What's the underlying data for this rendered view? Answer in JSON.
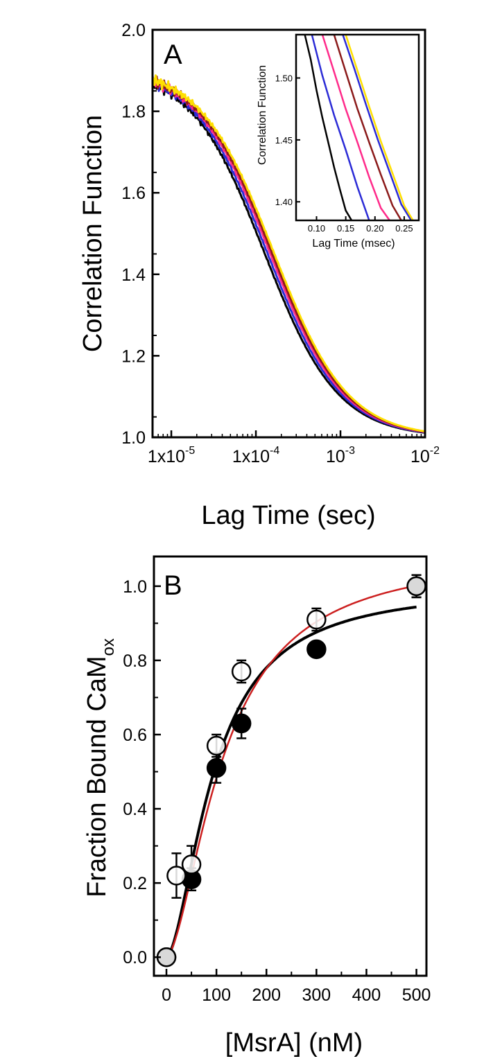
{
  "chart_data": [
    {
      "panel": "A",
      "type": "line",
      "xlabel": "Lag Time (sec)",
      "ylabel": "Correlation Function",
      "x_scale": "log",
      "xlim": [
        6e-06,
        0.01
      ],
      "ylim": [
        1.0,
        2.0
      ],
      "xticks": [
        {
          "value": 1e-05,
          "base": "1x10",
          "exp": "-5"
        },
        {
          "value": 0.0001,
          "base": "1x10",
          "exp": "-4"
        },
        {
          "value": 0.001,
          "base": "10",
          "exp": "-3"
        },
        {
          "value": 0.01,
          "base": "10",
          "exp": "-2"
        }
      ],
      "yticks": [
        "1.0",
        "1.2",
        "1.4",
        "1.6",
        "1.8",
        "2.0"
      ],
      "series": [
        {
          "color": "#000000",
          "tau": 0.000125
        },
        {
          "color": "#2b2bd6",
          "tau": 0.000135
        },
        {
          "color": "#ff2a8a",
          "tau": 0.000145
        },
        {
          "color": "#8b1a1a",
          "tau": 0.000153
        },
        {
          "color": "#ffe000",
          "tau": 0.000162
        }
      ],
      "model": {
        "baseline": 1.0,
        "amplitude": 0.91
      },
      "inset": {
        "xlabel": "Lag Time (msec)",
        "ylabel": "Correlation Function",
        "xlim": [
          0.065,
          0.275
        ],
        "ylim": [
          1.385,
          1.535
        ],
        "xticks": [
          "0.10",
          "0.15",
          "0.20",
          "0.25"
        ],
        "yticks": [
          "1.40",
          "1.45",
          "1.50"
        ],
        "series": [
          {
            "color": "#000000",
            "x": [
              0.08,
              0.09,
              0.1,
              0.11,
              0.12,
              0.13,
              0.14,
              0.15,
              0.16
            ],
            "y": [
              1.535,
              1.515,
              1.49,
              1.468,
              1.448,
              1.428,
              1.41,
              1.393,
              1.385
            ]
          },
          {
            "color": "#2b2bd6",
            "x": [
              0.092,
              0.11,
              0.13,
              0.15,
              0.17,
              0.19
            ],
            "y": [
              1.535,
              1.502,
              1.47,
              1.442,
              1.412,
              1.385
            ]
          },
          {
            "color": "#ff2a8a",
            "x": [
              0.11,
              0.13,
              0.15,
              0.17,
              0.19,
              0.21,
              0.225
            ],
            "y": [
              1.535,
              1.505,
              1.475,
              1.448,
              1.42,
              1.395,
              1.385
            ]
          },
          {
            "color": "#8b1a1a",
            "x": [
              0.13,
              0.15,
              0.17,
              0.19,
              0.21,
              0.23,
              0.245
            ],
            "y": [
              1.535,
              1.505,
              1.475,
              1.448,
              1.422,
              1.397,
              1.385
            ]
          },
          {
            "color": "#2b2bd6",
            "x": [
              0.145,
              0.165,
              0.185,
              0.205,
              0.225,
              0.245,
              0.262
            ],
            "y": [
              1.535,
              1.507,
              1.478,
              1.45,
              1.424,
              1.398,
              1.385
            ]
          },
          {
            "color": "#ffe000",
            "x": [
              0.15,
              0.17,
              0.19,
              0.21,
              0.23,
              0.25,
              0.265
            ],
            "y": [
              1.535,
              1.506,
              1.477,
              1.449,
              1.423,
              1.397,
              1.385
            ]
          }
        ]
      }
    },
    {
      "panel": "B",
      "type": "scatter",
      "xlabel": "[MsrA] (nM)",
      "ylabel": "Fraction Bound CaM",
      "ylabel_subscript": "ox",
      "xlim": [
        -25,
        520
      ],
      "ylim": [
        -0.05,
        1.08
      ],
      "xticks": [
        "0",
        "100",
        "200",
        "300",
        "400",
        "500"
      ],
      "yticks": [
        "0.0",
        "0.2",
        "0.4",
        "0.6",
        "0.8",
        "1.0"
      ],
      "series": [
        {
          "marker": "open-circle",
          "x": [
            0,
            20,
            50,
            100,
            150,
            300,
            500
          ],
          "y": [
            0.0,
            0.22,
            0.25,
            0.57,
            0.77,
            0.91,
            1.0
          ],
          "err": [
            0.01,
            0.06,
            0.05,
            0.03,
            0.03,
            0.03,
            0.03
          ]
        },
        {
          "marker": "filled-circle",
          "x": [
            0,
            50,
            100,
            150,
            300,
            500
          ],
          "y": [
            0.0,
            0.21,
            0.51,
            0.63,
            0.83,
            1.0
          ],
          "err": [
            0.01,
            0.03,
            0.04,
            0.04,
            0.02,
            0.03
          ]
        }
      ],
      "fits": [
        {
          "color": "#000000",
          "model": "hill",
          "vmax": 1.0,
          "k": 95,
          "n": 1.7
        },
        {
          "color": "#cc1f1f",
          "model": "hill",
          "vmax": 1.09,
          "k": 115,
          "n": 1.65
        }
      ]
    }
  ],
  "panel_a_letter": "A",
  "panel_b_letter": "B"
}
